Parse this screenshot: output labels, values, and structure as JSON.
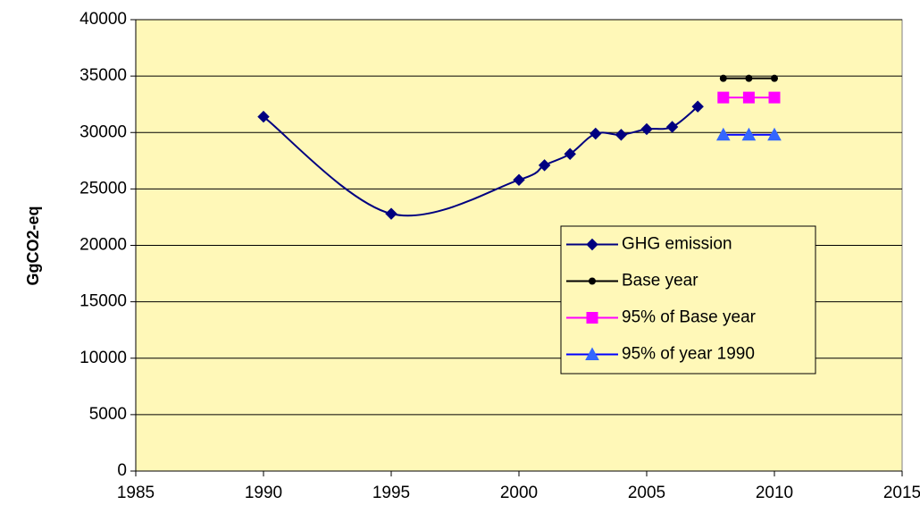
{
  "chart_data": {
    "type": "line",
    "y_label": "GgCO2-eq",
    "xlim": [
      1985,
      2015
    ],
    "xticks": [
      1985,
      1990,
      1995,
      2000,
      2005,
      2010,
      2015
    ],
    "ylim": [
      0,
      40000
    ],
    "yticks": [
      0,
      5000,
      10000,
      15000,
      20000,
      25000,
      30000,
      35000,
      40000
    ],
    "grid": true,
    "legend": "center-right",
    "series": [
      {
        "name": "GHG emission",
        "color": "#000080",
        "marker": "diamond",
        "smooth": true,
        "x": [
          1990,
          1995,
          2000,
          2001,
          2002,
          2003,
          2004,
          2005,
          2006,
          2007
        ],
        "values": [
          31400,
          22800,
          25800,
          27100,
          28100,
          29900,
          29800,
          30300,
          30500,
          32300
        ]
      },
      {
        "name": "Base year",
        "color": "#000000",
        "marker": "circle",
        "x": [
          2008,
          2009,
          2010
        ],
        "values": [
          34800,
          34800,
          34800
        ]
      },
      {
        "name": "95% of Base year",
        "color": "#ff00ff",
        "marker": "square",
        "x": [
          2008,
          2009,
          2010
        ],
        "values": [
          33100,
          33100,
          33100
        ]
      },
      {
        "name": "95% of year 1990",
        "color": "#3366ff",
        "marker": "triangle",
        "x": [
          2008,
          2009,
          2010
        ],
        "values": [
          29800,
          29800,
          29800
        ]
      }
    ]
  }
}
